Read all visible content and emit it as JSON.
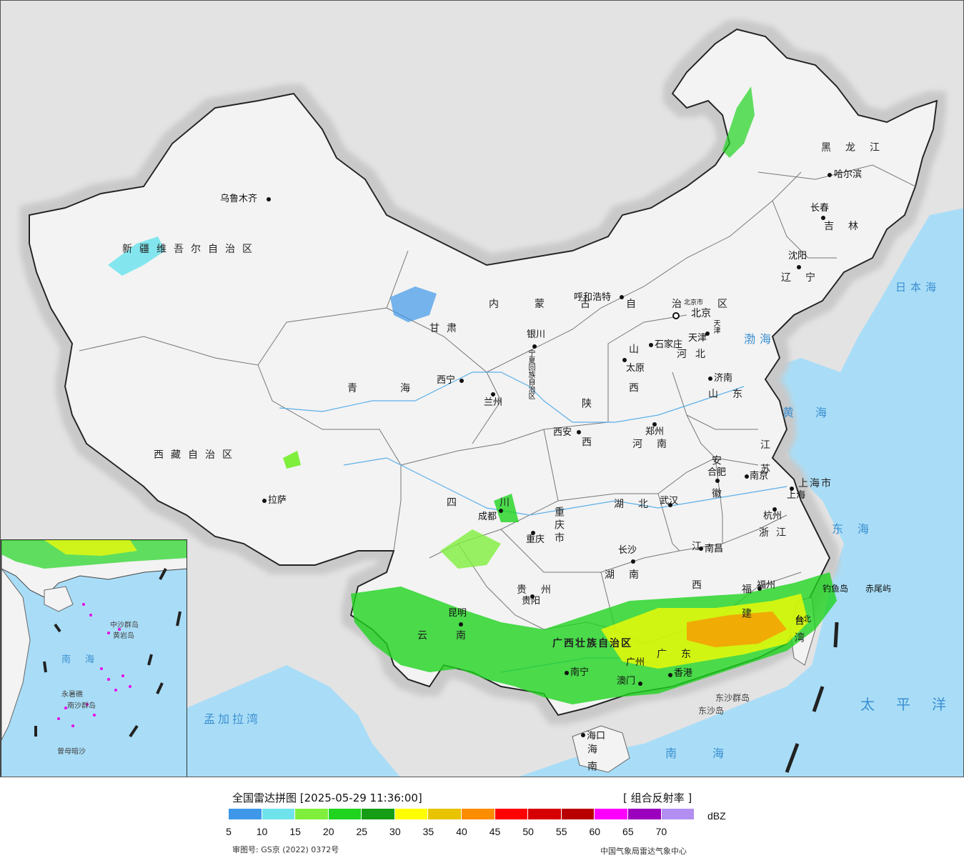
{
  "legend": {
    "title": "全国雷达拼图 [2025-05-29 11:36:00]",
    "product": "[ 组合反射率 ]",
    "unit": "dBZ",
    "approval": "审图号: GS京 (2022) 0372号",
    "agency": "中国气象局雷达气象中心",
    "ticks": [
      "5",
      "10",
      "15",
      "20",
      "25",
      "30",
      "35",
      "40",
      "45",
      "50",
      "55",
      "60",
      "65",
      "70"
    ],
    "colors": [
      "#3e97e8",
      "#6ee3ec",
      "#7fef3c",
      "#1fd31f",
      "#169d16",
      "#fefe00",
      "#e8c300",
      "#fe8c00",
      "#fe0000",
      "#d60000",
      "#b90000",
      "#fe00fe",
      "#9a00bd",
      "#b28ef0"
    ]
  },
  "provinces": [
    "新疆维吾尔自治区",
    "西藏自治区",
    "青海",
    "甘肃",
    "内蒙古自治区",
    "黑龙江",
    "吉林",
    "辽宁",
    "河北",
    "山西",
    "陕西",
    "宁夏回族自治区",
    "四川",
    "云南",
    "贵州",
    "广西壮族自治区",
    "广东",
    "湖南",
    "湖北",
    "河南",
    "山东",
    "江苏",
    "安徽",
    "浙江",
    "江西",
    "福建",
    "台湾",
    "海南",
    "重庆市",
    "上海市",
    "北京市",
    "天津"
  ],
  "cities": [
    "乌鲁木齐",
    "拉萨",
    "西宁",
    "兰州",
    "银川",
    "呼和浩特",
    "北京",
    "天津",
    "石家庄",
    "太原",
    "济南",
    "郑州",
    "西安",
    "成都",
    "重庆",
    "武汉",
    "南京",
    "合肥",
    "上海",
    "杭州",
    "南昌",
    "长沙",
    "贵阳",
    "昆明",
    "南宁",
    "广州",
    "香港",
    "澳门",
    "海口",
    "福州",
    "台北",
    "哈尔滨",
    "长春",
    "沈阳"
  ],
  "seas": [
    "日本海",
    "渤海",
    "黄海",
    "东海",
    "太平洋",
    "南海",
    "孟加拉湾"
  ],
  "islands": [
    "钓鱼岛",
    "赤尾屿",
    "东沙群岛",
    "东沙岛"
  ],
  "inset": {
    "labels": [
      "南海",
      "中沙群岛",
      "黄岩岛",
      "永暑礁",
      "南沙群岛",
      "曾母暗沙"
    ]
  }
}
